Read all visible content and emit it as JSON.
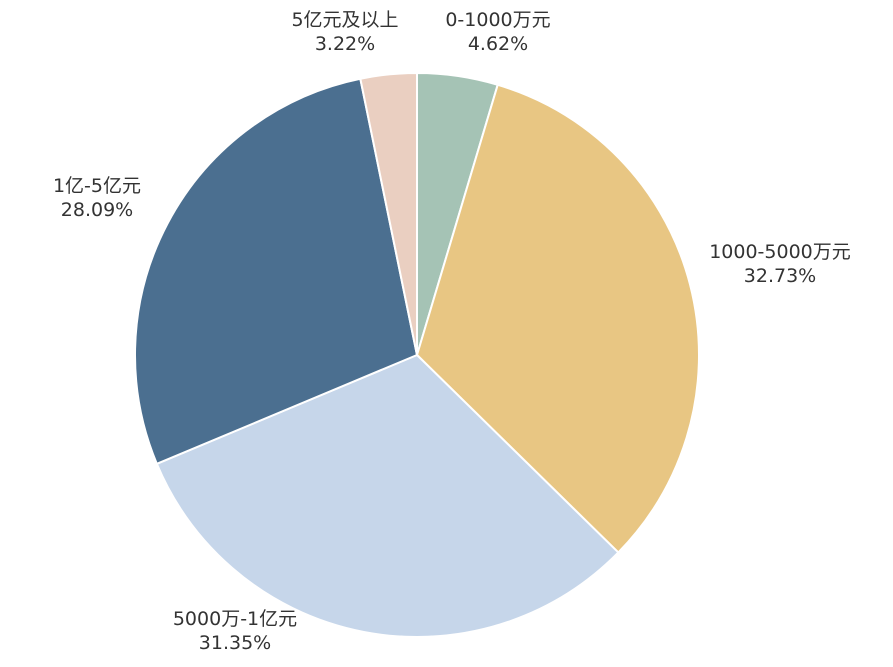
{
  "chart_data": {
    "type": "pie",
    "title": "",
    "slices": [
      {
        "label": "0-1000万元",
        "value": 4.62,
        "display": "4.62%",
        "color": "#a5c3b5"
      },
      {
        "label": "1000-5000万元",
        "value": 32.73,
        "display": "32.73%",
        "color": "#e8c683"
      },
      {
        "label": "5000万-1亿元",
        "value": 31.35,
        "display": "31.35%",
        "color": "#c6d6ea"
      },
      {
        "label": "1亿-5亿元",
        "value": 28.09,
        "display": "28.09%",
        "color": "#4b6f90"
      },
      {
        "label": "5亿元及以上",
        "value": 3.22,
        "display": "3.22%",
        "color": "#eacfc1"
      }
    ],
    "start_angle": "12 o'clock",
    "direction": "clockwise",
    "legend": "none",
    "data_labels": "outside"
  }
}
